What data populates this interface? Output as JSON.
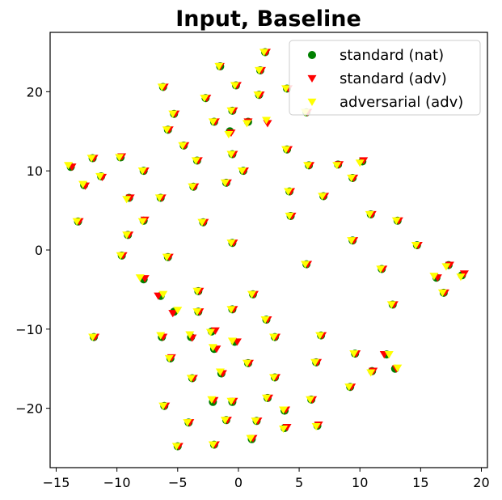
{
  "chart_data": {
    "type": "scatter",
    "title": "Input, Baseline",
    "xlabel": "",
    "ylabel": "",
    "xlim": [
      -15.5,
      20.5
    ],
    "ylim": [
      -27.5,
      27.5
    ],
    "x_ticks": [
      -15,
      -10,
      -5,
      0,
      5,
      10,
      15,
      20
    ],
    "y_ticks": [
      -20,
      -10,
      0,
      10,
      20
    ],
    "grid": false,
    "legend_position": "top-right",
    "series": [
      {
        "name": "standard (nat)",
        "marker": "circle",
        "color": "#008000",
        "points": [
          [
            2.2,
            25.0
          ],
          [
            -1.5,
            23.2
          ],
          [
            1.8,
            22.7
          ],
          [
            -6.2,
            20.6
          ],
          [
            -0.2,
            20.8
          ],
          [
            4.0,
            20.4
          ],
          [
            5.6,
            17.4
          ],
          [
            -2.7,
            19.2
          ],
          [
            1.7,
            19.6
          ],
          [
            -5.3,
            17.2
          ],
          [
            -0.5,
            17.6
          ],
          [
            -2.0,
            16.2
          ],
          [
            0.8,
            16.2
          ],
          [
            -5.8,
            15.2
          ],
          [
            -0.7,
            15.0
          ],
          [
            -4.5,
            13.2
          ],
          [
            -0.5,
            12.1
          ],
          [
            4.0,
            12.7
          ],
          [
            -3.4,
            11.3
          ],
          [
            -12.0,
            11.6
          ],
          [
            -13.8,
            10.5
          ],
          [
            -9.7,
            11.7
          ],
          [
            10.2,
            11.2
          ],
          [
            5.8,
            10.7
          ],
          [
            8.2,
            10.8
          ],
          [
            -7.8,
            10.0
          ],
          [
            -11.3,
            9.3
          ],
          [
            0.4,
            10.0
          ],
          [
            -12.7,
            8.2
          ],
          [
            -3.7,
            8.0
          ],
          [
            -1.0,
            8.5
          ],
          [
            9.4,
            9.1
          ],
          [
            -9.0,
            6.6
          ],
          [
            -6.4,
            6.6
          ],
          [
            4.2,
            7.4
          ],
          [
            7.0,
            6.8
          ],
          [
            -2.9,
            3.5
          ],
          [
            4.3,
            4.3
          ],
          [
            10.9,
            4.5
          ],
          [
            13.1,
            3.7
          ],
          [
            -13.2,
            3.6
          ],
          [
            -7.8,
            3.7
          ],
          [
            -9.1,
            1.9
          ],
          [
            9.4,
            1.2
          ],
          [
            -0.5,
            0.9
          ],
          [
            14.7,
            0.6
          ],
          [
            -9.6,
            -0.7
          ],
          [
            -5.8,
            -0.9
          ],
          [
            5.6,
            -1.8
          ],
          [
            11.8,
            -2.4
          ],
          [
            16.3,
            -3.5
          ],
          [
            17.3,
            -1.9
          ],
          [
            18.4,
            -3.2
          ],
          [
            -7.8,
            -3.7
          ],
          [
            -3.3,
            -5.2
          ],
          [
            -6.4,
            -5.8
          ],
          [
            1.2,
            -5.6
          ],
          [
            16.9,
            -5.4
          ],
          [
            12.7,
            -6.9
          ],
          [
            -5.3,
            -7.8
          ],
          [
            -3.3,
            -7.8
          ],
          [
            -0.5,
            -7.5
          ],
          [
            2.3,
            -8.8
          ],
          [
            -6.3,
            -11.0
          ],
          [
            -2.2,
            -10.3
          ],
          [
            3.0,
            -11.0
          ],
          [
            -3.9,
            -11.0
          ],
          [
            6.8,
            -10.8
          ],
          [
            -11.9,
            -11.0
          ],
          [
            -0.3,
            -11.6
          ],
          [
            -2.0,
            -12.5
          ],
          [
            9.6,
            -13.1
          ],
          [
            -5.6,
            -13.7
          ],
          [
            12.2,
            -13.2
          ],
          [
            0.8,
            -14.3
          ],
          [
            6.4,
            -14.2
          ],
          [
            11.0,
            -15.3
          ],
          [
            12.9,
            -15.0
          ],
          [
            -1.4,
            -15.6
          ],
          [
            -3.8,
            -16.2
          ],
          [
            3.0,
            -16.1
          ],
          [
            9.2,
            -17.3
          ],
          [
            -2.1,
            -19.2
          ],
          [
            -0.5,
            -19.2
          ],
          [
            2.4,
            -18.7
          ],
          [
            6.0,
            -18.9
          ],
          [
            -6.1,
            -19.7
          ],
          [
            3.8,
            -20.3
          ],
          [
            -1.0,
            -21.5
          ],
          [
            -4.1,
            -21.8
          ],
          [
            1.5,
            -21.6
          ],
          [
            3.8,
            -22.5
          ],
          [
            6.5,
            -22.2
          ],
          [
            1.1,
            -23.9
          ],
          [
            -2.0,
            -24.6
          ],
          [
            -5.0,
            -24.8
          ]
        ]
      },
      {
        "name": "standard (adv)",
        "marker": "triangle-down",
        "color": "#ff0000",
        "points": [
          [
            2.3,
            25.0
          ],
          [
            -1.5,
            23.2
          ],
          [
            1.9,
            22.7
          ],
          [
            -6.1,
            20.6
          ],
          [
            -0.1,
            20.8
          ],
          [
            4.1,
            20.4
          ],
          [
            5.7,
            17.4
          ],
          [
            -2.6,
            19.2
          ],
          [
            1.8,
            19.6
          ],
          [
            -5.2,
            17.2
          ],
          [
            -0.4,
            17.6
          ],
          [
            -1.9,
            16.2
          ],
          [
            0.8,
            16.2
          ],
          [
            2.4,
            16.0
          ],
          [
            -5.7,
            15.2
          ],
          [
            -0.6,
            14.8
          ],
          [
            -4.4,
            13.2
          ],
          [
            -0.4,
            12.1
          ],
          [
            4.1,
            12.7
          ],
          [
            -3.3,
            11.3
          ],
          [
            -11.9,
            11.6
          ],
          [
            -13.7,
            10.5
          ],
          [
            -9.6,
            11.8
          ],
          [
            10.3,
            11.3
          ],
          [
            5.9,
            10.7
          ],
          [
            8.3,
            10.8
          ],
          [
            -7.7,
            10.0
          ],
          [
            -11.2,
            9.2
          ],
          [
            0.5,
            10.0
          ],
          [
            -12.6,
            8.1
          ],
          [
            -3.6,
            8.0
          ],
          [
            -0.9,
            8.5
          ],
          [
            9.5,
            9.1
          ],
          [
            -8.9,
            6.6
          ],
          [
            -6.3,
            6.6
          ],
          [
            4.3,
            7.4
          ],
          [
            7.1,
            6.8
          ],
          [
            -2.8,
            3.5
          ],
          [
            4.4,
            4.3
          ],
          [
            11.0,
            4.5
          ],
          [
            13.2,
            3.7
          ],
          [
            -13.1,
            3.6
          ],
          [
            -7.7,
            3.8
          ],
          [
            -9.0,
            1.9
          ],
          [
            9.5,
            1.2
          ],
          [
            -0.4,
            0.9
          ],
          [
            14.8,
            0.6
          ],
          [
            -9.5,
            -0.7
          ],
          [
            -5.7,
            -0.9
          ],
          [
            5.7,
            -1.8
          ],
          [
            11.9,
            -2.4
          ],
          [
            16.4,
            -3.5
          ],
          [
            17.4,
            -1.9
          ],
          [
            18.6,
            -3.0
          ],
          [
            -7.7,
            -3.6
          ],
          [
            -3.2,
            -5.2
          ],
          [
            -6.6,
            -5.8
          ],
          [
            1.3,
            -5.6
          ],
          [
            17.0,
            -5.4
          ],
          [
            12.8,
            -6.9
          ],
          [
            -5.4,
            -8.0
          ],
          [
            -3.2,
            -7.8
          ],
          [
            -0.4,
            -7.5
          ],
          [
            2.4,
            -8.8
          ],
          [
            -6.2,
            -11.0
          ],
          [
            -1.9,
            -10.2
          ],
          [
            3.1,
            -11.0
          ],
          [
            -3.8,
            -11.1
          ],
          [
            6.9,
            -10.8
          ],
          [
            -11.8,
            -11.0
          ],
          [
            -0.1,
            -11.6
          ],
          [
            -1.8,
            -12.5
          ],
          [
            9.7,
            -13.1
          ],
          [
            -5.5,
            -13.6
          ],
          [
            12.0,
            -13.2
          ],
          [
            0.9,
            -14.3
          ],
          [
            6.5,
            -14.2
          ],
          [
            11.1,
            -15.3
          ],
          [
            13.0,
            -15.0
          ],
          [
            -1.3,
            -15.6
          ],
          [
            -3.7,
            -16.2
          ],
          [
            3.1,
            -16.1
          ],
          [
            9.3,
            -17.3
          ],
          [
            -2.0,
            -19.0
          ],
          [
            -0.4,
            -19.1
          ],
          [
            2.5,
            -18.7
          ],
          [
            6.1,
            -18.9
          ],
          [
            -6.0,
            -19.7
          ],
          [
            3.9,
            -20.2
          ],
          [
            -0.9,
            -21.5
          ],
          [
            -4.0,
            -21.8
          ],
          [
            1.6,
            -21.6
          ],
          [
            4.0,
            -22.4
          ],
          [
            6.6,
            -22.1
          ],
          [
            1.2,
            -23.8
          ],
          [
            -1.9,
            -24.6
          ],
          [
            -4.9,
            -24.8
          ]
        ]
      },
      {
        "name": "adversarial (adv)",
        "marker": "triangle-down",
        "color": "#ffff00",
        "points": [
          [
            2.1,
            25.0
          ],
          [
            -1.6,
            23.2
          ],
          [
            1.7,
            22.7
          ],
          [
            -6.3,
            20.6
          ],
          [
            -0.3,
            20.8
          ],
          [
            3.9,
            20.4
          ],
          [
            5.5,
            17.4
          ],
          [
            -2.8,
            19.2
          ],
          [
            1.6,
            19.6
          ],
          [
            -5.4,
            17.2
          ],
          [
            -0.6,
            17.6
          ],
          [
            -2.1,
            16.2
          ],
          [
            0.7,
            16.0
          ],
          [
            2.3,
            16.4
          ],
          [
            -5.9,
            15.2
          ],
          [
            -0.8,
            14.6
          ],
          [
            -4.6,
            13.2
          ],
          [
            -0.6,
            12.1
          ],
          [
            3.9,
            12.7
          ],
          [
            -3.5,
            11.3
          ],
          [
            -12.1,
            11.6
          ],
          [
            -14.0,
            10.7
          ],
          [
            -9.8,
            11.7
          ],
          [
            10.0,
            11.0
          ],
          [
            5.7,
            10.7
          ],
          [
            8.1,
            10.7
          ],
          [
            -7.9,
            10.0
          ],
          [
            -11.4,
            9.3
          ],
          [
            0.3,
            10.0
          ],
          [
            -12.8,
            8.3
          ],
          [
            -3.8,
            8.0
          ],
          [
            -1.1,
            8.5
          ],
          [
            9.3,
            9.1
          ],
          [
            -9.2,
            6.4
          ],
          [
            -6.5,
            6.6
          ],
          [
            4.1,
            7.4
          ],
          [
            6.9,
            6.8
          ],
          [
            -3.0,
            3.5
          ],
          [
            4.2,
            4.3
          ],
          [
            10.8,
            4.5
          ],
          [
            13.0,
            3.7
          ],
          [
            -13.3,
            3.6
          ],
          [
            -7.9,
            3.6
          ],
          [
            -9.2,
            1.9
          ],
          [
            9.3,
            1.2
          ],
          [
            -0.6,
            0.9
          ],
          [
            14.6,
            0.6
          ],
          [
            -9.7,
            -0.7
          ],
          [
            -5.9,
            -0.9
          ],
          [
            5.5,
            -1.8
          ],
          [
            11.7,
            -2.4
          ],
          [
            16.1,
            -3.3
          ],
          [
            17.1,
            -2.1
          ],
          [
            18.3,
            -3.4
          ],
          [
            -8.1,
            -3.5
          ],
          [
            -3.4,
            -5.2
          ],
          [
            -6.2,
            -5.6
          ],
          [
            1.1,
            -5.6
          ],
          [
            16.8,
            -5.4
          ],
          [
            12.6,
            -6.9
          ],
          [
            -5.0,
            -7.6
          ],
          [
            -3.4,
            -7.8
          ],
          [
            -0.6,
            -7.5
          ],
          [
            2.2,
            -8.8
          ],
          [
            -6.4,
            -10.8
          ],
          [
            -2.3,
            -10.4
          ],
          [
            2.9,
            -11.0
          ],
          [
            -4.0,
            -10.7
          ],
          [
            6.7,
            -10.8
          ],
          [
            -12.0,
            -11.0
          ],
          [
            -0.5,
            -11.5
          ],
          [
            -2.1,
            -12.3
          ],
          [
            9.5,
            -13.1
          ],
          [
            -5.7,
            -13.7
          ],
          [
            12.4,
            -13.2
          ],
          [
            0.7,
            -14.3
          ],
          [
            6.3,
            -14.2
          ],
          [
            10.9,
            -15.5
          ],
          [
            13.1,
            -14.9
          ],
          [
            -1.5,
            -15.4
          ],
          [
            -3.9,
            -16.2
          ],
          [
            2.9,
            -16.1
          ],
          [
            9.1,
            -17.3
          ],
          [
            -2.2,
            -18.9
          ],
          [
            -0.6,
            -19.1
          ],
          [
            2.3,
            -18.7
          ],
          [
            5.9,
            -18.9
          ],
          [
            -6.2,
            -19.7
          ],
          [
            3.7,
            -20.2
          ],
          [
            -1.1,
            -21.5
          ],
          [
            -4.2,
            -21.8
          ],
          [
            1.4,
            -21.6
          ],
          [
            3.7,
            -22.6
          ],
          [
            6.4,
            -22.3
          ],
          [
            1.0,
            -23.8
          ],
          [
            -2.1,
            -24.6
          ],
          [
            -5.1,
            -24.8
          ]
        ]
      }
    ]
  }
}
